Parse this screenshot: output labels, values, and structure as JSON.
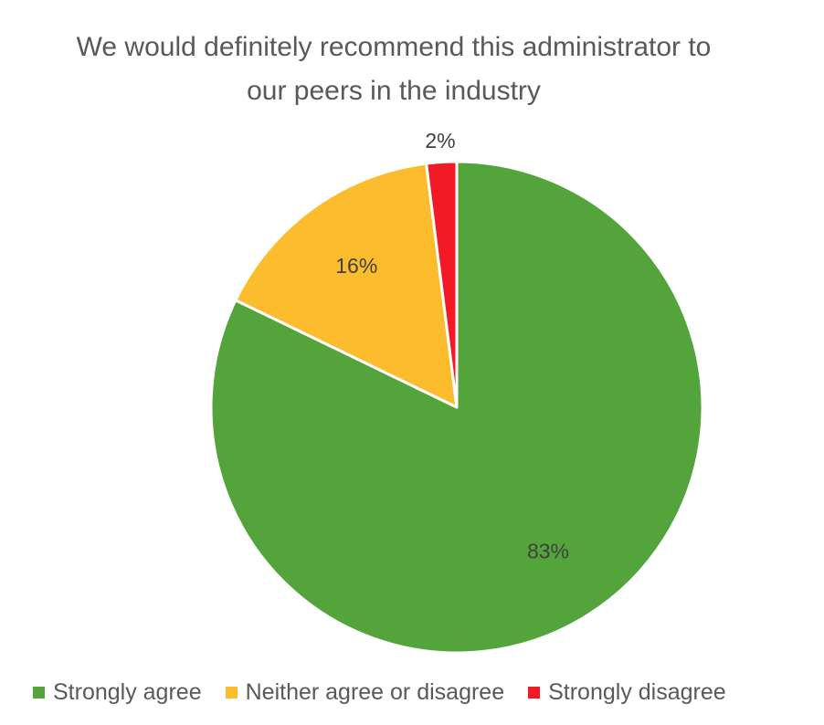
{
  "chart_data": {
    "type": "pie",
    "title": [
      "We would definitely recommend this administrator to",
      "our peers in the industry"
    ],
    "slices": [
      {
        "name": "Strongly agree",
        "value": 83,
        "label": "83%",
        "color": "#53A43A"
      },
      {
        "name": "Neither agree or disagree",
        "value": 16,
        "label": "16%",
        "color": "#FBBD2E"
      },
      {
        "name": "Strongly disagree",
        "value": 2,
        "label": "2%",
        "color": "#F21A25"
      }
    ],
    "legend_position": "bottom",
    "start_angle_deg": 0,
    "direction": "clockwise"
  }
}
